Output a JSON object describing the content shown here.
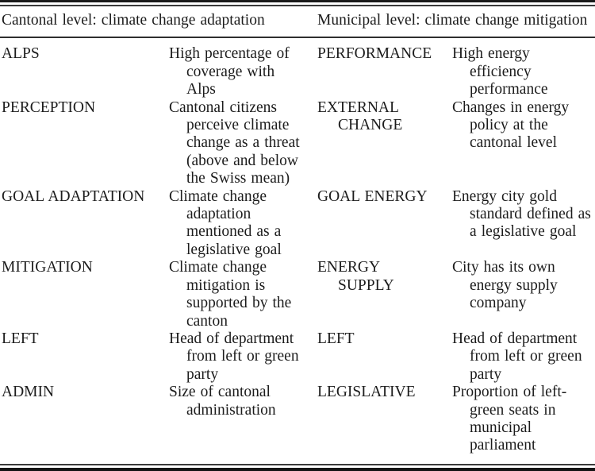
{
  "table": {
    "column_headers": [
      "Cantonal level: climate change adaptation",
      "Municipal level: climate change mitigation"
    ],
    "rows": [
      {
        "cantonal_term": "ALPS",
        "cantonal_desc": "High percentage of\ncoverage with\nAlps",
        "municipal_term": "PERFORMANCE",
        "municipal_desc": "High energy\nefficiency\nperformance"
      },
      {
        "cantonal_term": "PERCEPTION",
        "cantonal_desc": "Cantonal citizens\nperceive climate\nchange as a threat\n(above and below\nthe Swiss mean)",
        "municipal_term": "EXTERNAL\nCHANGE",
        "municipal_desc": "Changes in energy\npolicy at the\ncantonal level"
      },
      {
        "cantonal_term": "GOAL ADAPTATION",
        "cantonal_desc": "Climate change\nadaptation\nmentioned as a\nlegislative goal",
        "municipal_term": "GOAL ENERGY",
        "municipal_desc": "Energy city gold\nstandard defined as\na legislative goal"
      },
      {
        "cantonal_term": "MITIGATION",
        "cantonal_desc": "Climate change\nmitigation is\nsupported by the\ncanton",
        "municipal_term": "ENERGY\nSUPPLY",
        "municipal_desc": "City has its own\nenergy supply\ncompany"
      },
      {
        "cantonal_term": "LEFT",
        "cantonal_desc": "Head of department\nfrom left or green\nparty",
        "municipal_term": "LEFT",
        "municipal_desc": "Head of department\nfrom left or green\nparty"
      },
      {
        "cantonal_term": "ADMIN",
        "cantonal_desc": "Size of cantonal\nadministration",
        "municipal_term": "LEGISLATIVE",
        "municipal_desc": "Proportion of left-\ngreen seats in\nmunicipal\nparliament"
      }
    ]
  },
  "colors": {
    "text": "#1c1c1c",
    "background": "#ffffff",
    "rule": "#1a1a1a"
  }
}
